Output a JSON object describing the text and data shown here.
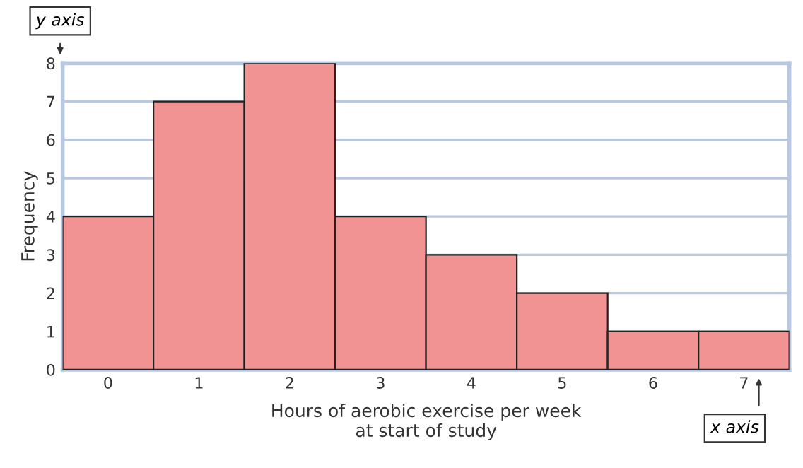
{
  "chart_data": {
    "type": "bar",
    "xlabel": "Hours of aerobic exercise per week\nat start of study",
    "ylabel": "Frequency",
    "categories": [
      "0",
      "1",
      "2",
      "3",
      "4",
      "5",
      "6",
      "7"
    ],
    "values": [
      4,
      7,
      8,
      4,
      3,
      2,
      1,
      1
    ],
    "color": "#f29393",
    "ylim": [
      0,
      8
    ],
    "yticks": [
      0,
      1,
      2,
      3,
      4,
      5,
      6,
      7,
      8
    ],
    "grid": "y",
    "annotations": [
      "y axis",
      "x axis"
    ]
  }
}
